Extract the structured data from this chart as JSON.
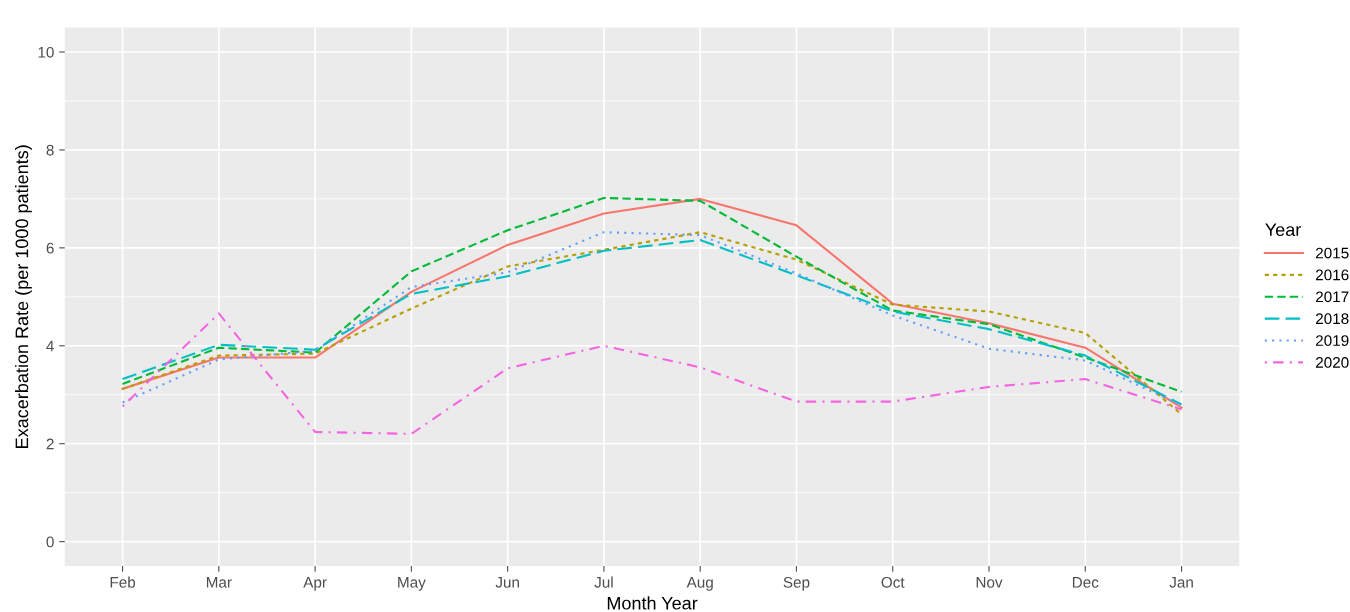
{
  "chart_data": {
    "type": "line",
    "xlabel": "Month Year",
    "ylabel": "Exacerbation Rate (per 1000 patients)",
    "legend_title": "Year",
    "legend": "right",
    "grid": true,
    "categories": [
      "Feb",
      "Mar",
      "Apr",
      "May",
      "Jun",
      "Jul",
      "Aug",
      "Sep",
      "Oct",
      "Nov",
      "Dec",
      "Jan"
    ],
    "ylim": [
      -0.5,
      10.5
    ],
    "yticks": [
      0,
      2,
      4,
      6,
      8,
      10
    ],
    "series": [
      {
        "name": "2015",
        "color": "#f8766d",
        "line_style": "solid",
        "values": [
          3.12,
          3.76,
          3.76,
          5.1,
          6.06,
          6.7,
          7.0,
          6.46,
          4.86,
          4.46,
          3.96,
          2.74
        ]
      },
      {
        "name": "2016",
        "color": "#b79f00",
        "line_style": "dotted",
        "values": [
          3.12,
          3.8,
          3.84,
          4.76,
          5.62,
          5.96,
          6.32,
          5.76,
          4.84,
          4.7,
          4.26,
          2.6
        ]
      },
      {
        "name": "2017",
        "color": "#00ba38",
        "line_style": "dashed",
        "values": [
          3.22,
          3.96,
          3.86,
          5.52,
          6.36,
          7.02,
          6.96,
          5.82,
          4.72,
          4.44,
          3.76,
          3.06
        ]
      },
      {
        "name": "2018",
        "color": "#00bfc4",
        "line_style": "longdash",
        "values": [
          3.32,
          4.02,
          3.92,
          5.06,
          5.42,
          5.94,
          6.16,
          5.44,
          4.7,
          4.34,
          3.8,
          2.8
        ]
      },
      {
        "name": "2019",
        "color": "#619cff",
        "line_style": "finedotted",
        "values": [
          2.84,
          3.72,
          3.9,
          5.2,
          5.5,
          6.32,
          6.26,
          5.48,
          4.62,
          3.94,
          3.7,
          2.78
        ]
      },
      {
        "name": "2020",
        "color": "#f564e3",
        "line_style": "dashdot",
        "values": [
          2.76,
          4.66,
          2.24,
          2.2,
          3.54,
          4.0,
          3.56,
          2.86,
          2.86,
          3.16,
          3.32,
          2.7
        ]
      }
    ]
  }
}
